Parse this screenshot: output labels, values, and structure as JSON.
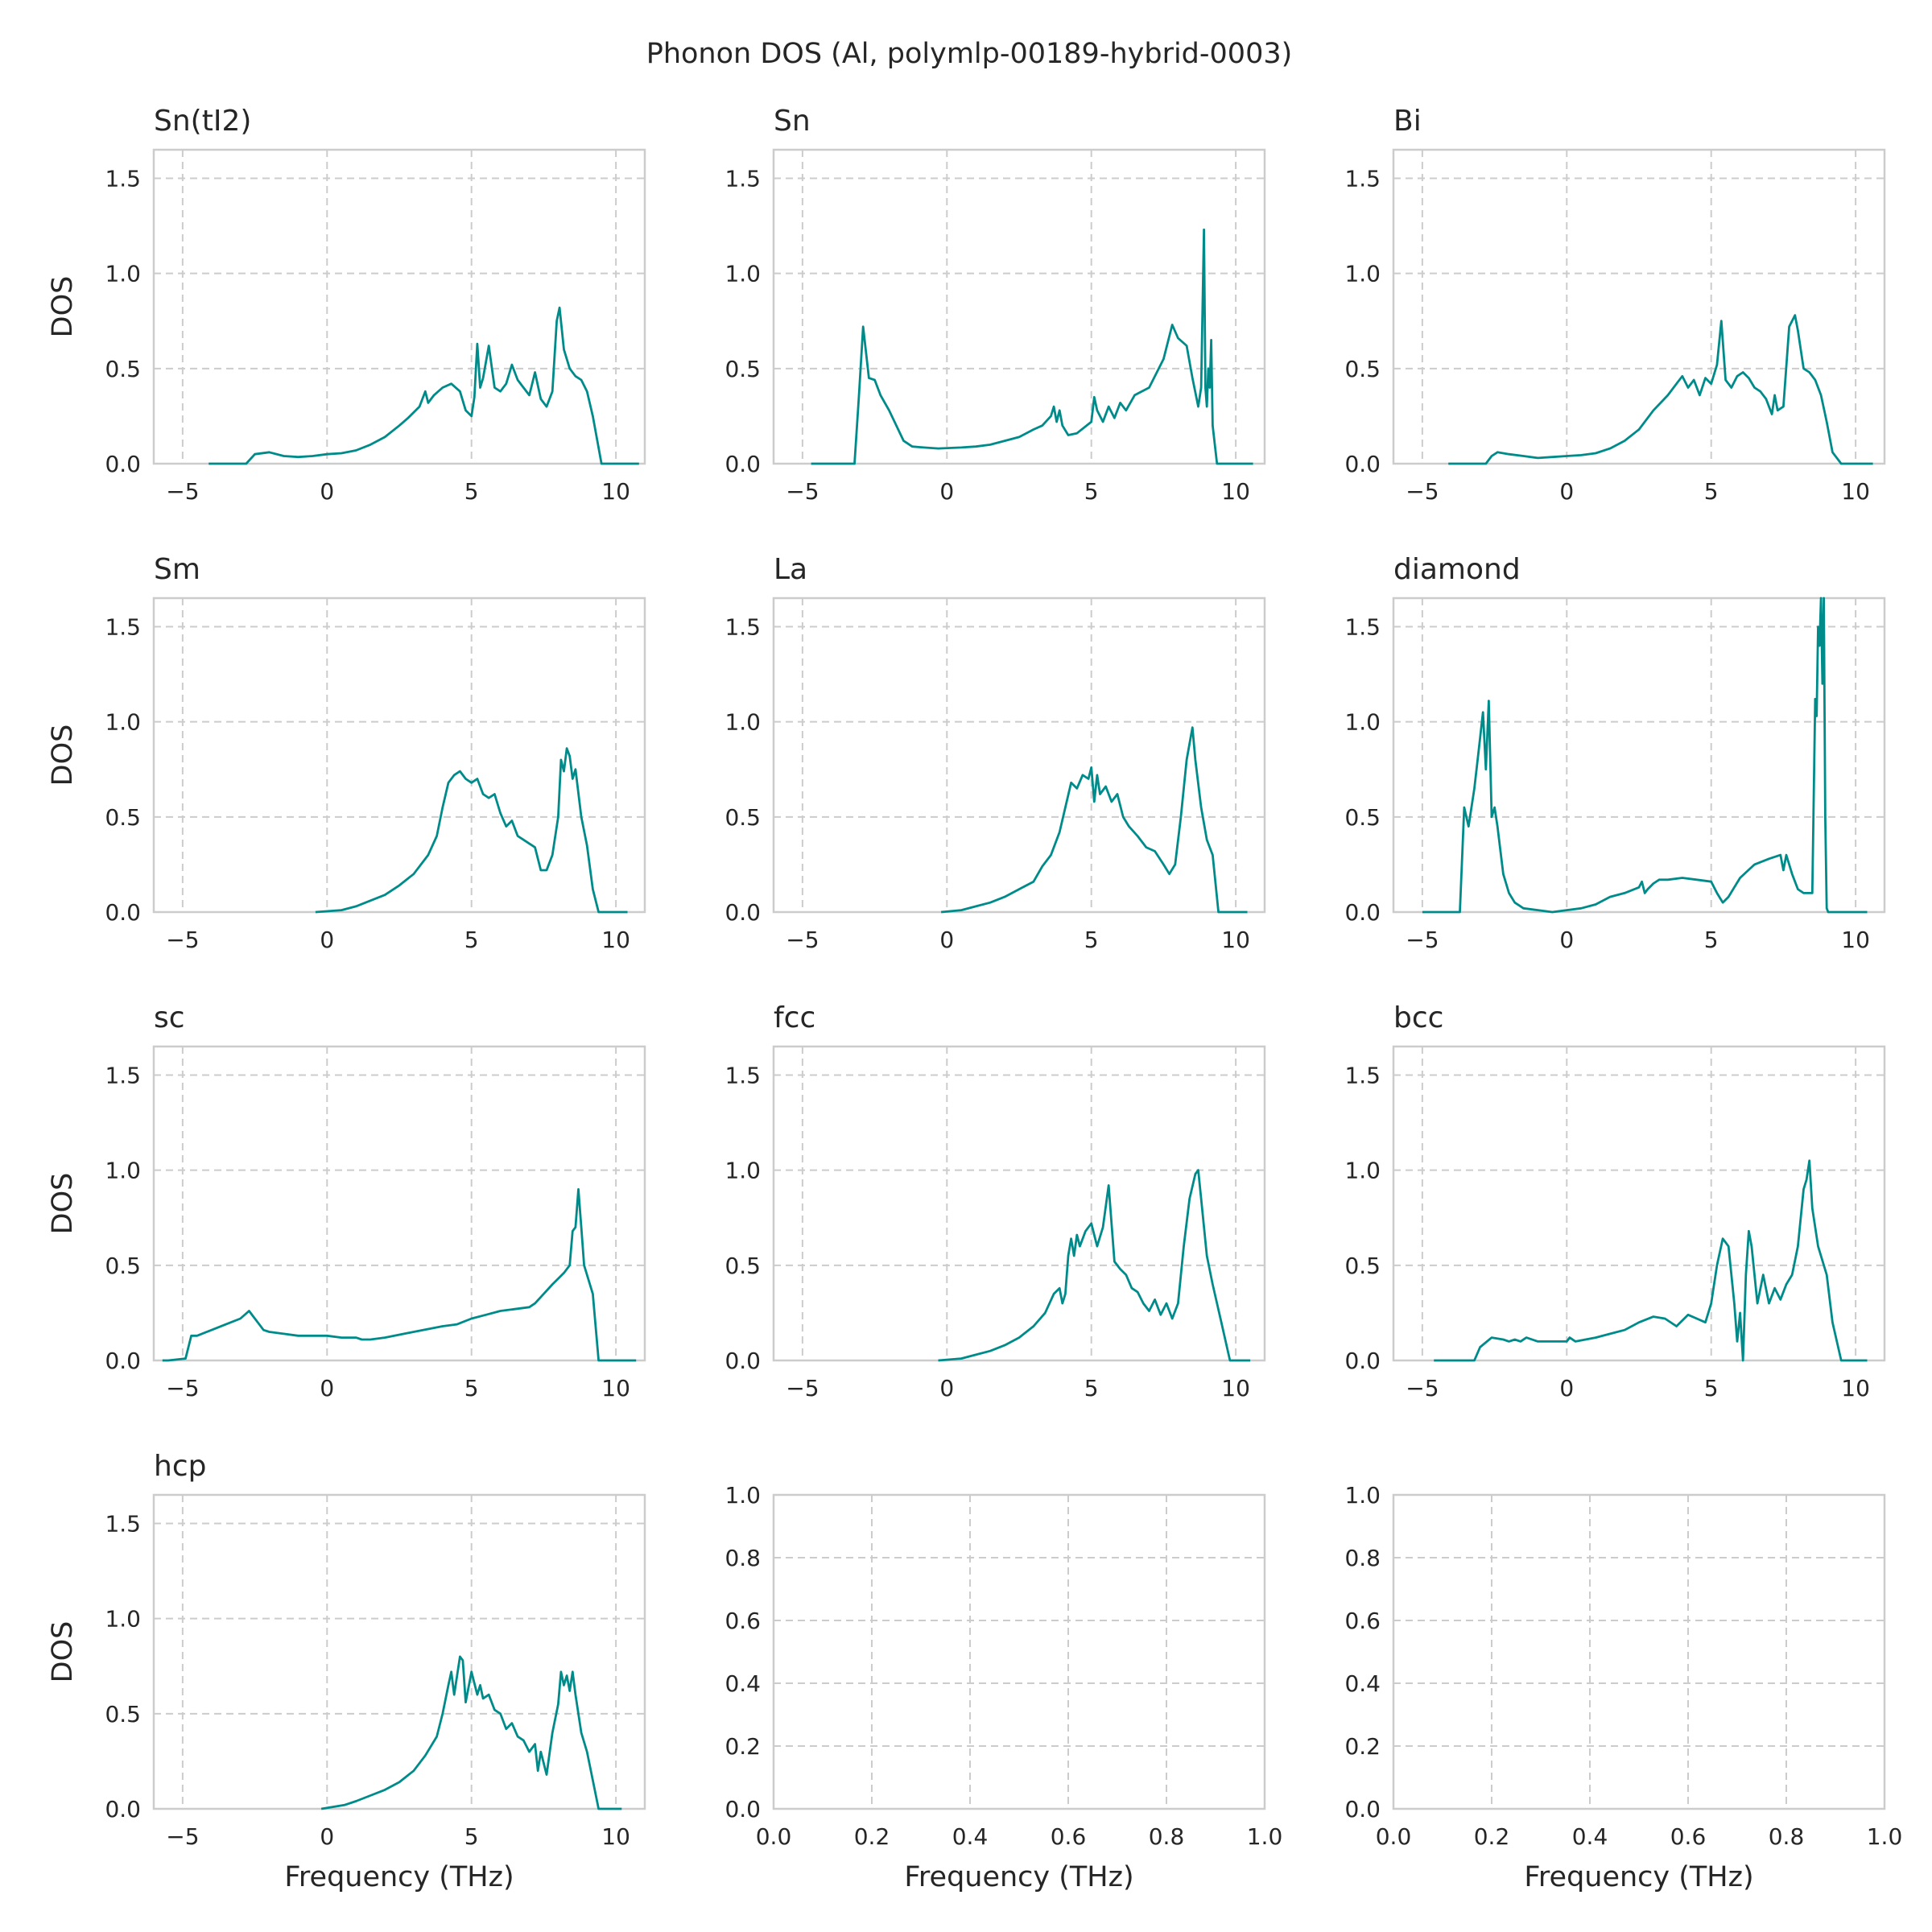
{
  "figure": {
    "title": "Phonon DOS (Al, polymlp-00189-hybrid-0003)",
    "line_color": "#008b8b",
    "grid": true
  },
  "chart_data": [
    {
      "type": "line",
      "title": "Sn(tI2)",
      "ylabel": "DOS",
      "xlabel": "",
      "xlim": [
        -6,
        11
      ],
      "ylim": [
        0,
        1.65
      ],
      "xticks": [
        -5,
        0,
        5,
        10
      ],
      "yticks": [
        0.0,
        0.5,
        1.0,
        1.5
      ],
      "x": [
        -4.1,
        -2.8,
        -2.5,
        -2,
        -1.5,
        -1,
        -0.5,
        0,
        0.5,
        1,
        1.5,
        2,
        2.5,
        2.8,
        3.2,
        3.4,
        3.5,
        3.7,
        4,
        4.3,
        4.6,
        4.8,
        5,
        5.1,
        5.2,
        5.3,
        5.4,
        5.6,
        5.8,
        6,
        6.2,
        6.4,
        6.6,
        6.8,
        7,
        7.1,
        7.2,
        7.4,
        7.6,
        7.8,
        7.95,
        8.05,
        8.2,
        8.4,
        8.6,
        8.8,
        9,
        9.2,
        9.5,
        10.8
      ],
      "y": [
        0,
        0,
        0.05,
        0.06,
        0.04,
        0.035,
        0.04,
        0.05,
        0.055,
        0.07,
        0.1,
        0.14,
        0.2,
        0.24,
        0.3,
        0.38,
        0.32,
        0.36,
        0.4,
        0.42,
        0.38,
        0.28,
        0.25,
        0.35,
        0.63,
        0.4,
        0.45,
        0.62,
        0.4,
        0.38,
        0.42,
        0.52,
        0.44,
        0.4,
        0.36,
        0.42,
        0.48,
        0.34,
        0.3,
        0.38,
        0.75,
        0.82,
        0.6,
        0.5,
        0.46,
        0.44,
        0.38,
        0.25,
        0,
        0
      ]
    },
    {
      "type": "line",
      "title": "Sn",
      "ylabel": "",
      "xlabel": "",
      "xlim": [
        -6,
        11
      ],
      "ylim": [
        0,
        1.65
      ],
      "xticks": [
        -5,
        0,
        5,
        10
      ],
      "yticks": [
        0.0,
        0.5,
        1.0,
        1.5
      ],
      "x": [
        -4.7,
        -3.2,
        -3.05,
        -2.9,
        -2.7,
        -2.5,
        -2.3,
        -2,
        -1.5,
        -1.2,
        -0.8,
        -0.3,
        0.5,
        1,
        1.5,
        2,
        2.5,
        3,
        3.3,
        3.6,
        3.7,
        3.8,
        3.9,
        4,
        4.2,
        4.5,
        5,
        5.1,
        5.2,
        5.4,
        5.6,
        5.8,
        6,
        6.2,
        6.5,
        7,
        7.5,
        7.8,
        8,
        8.3,
        8.5,
        8.7,
        8.8,
        8.9,
        8.95,
        9,
        9.05,
        9.1,
        9.15,
        9.2,
        9.35,
        10.6
      ],
      "y": [
        0,
        0,
        0.35,
        0.72,
        0.45,
        0.44,
        0.36,
        0.28,
        0.12,
        0.09,
        0.085,
        0.08,
        0.085,
        0.09,
        0.1,
        0.12,
        0.14,
        0.18,
        0.2,
        0.25,
        0.3,
        0.22,
        0.28,
        0.2,
        0.15,
        0.16,
        0.22,
        0.35,
        0.28,
        0.22,
        0.3,
        0.24,
        0.32,
        0.28,
        0.36,
        0.4,
        0.55,
        0.73,
        0.66,
        0.62,
        0.45,
        0.3,
        0.4,
        1.23,
        0.4,
        0.3,
        0.5,
        0.4,
        0.65,
        0.2,
        0,
        0
      ]
    },
    {
      "type": "line",
      "title": "Bi",
      "ylabel": "",
      "xlabel": "",
      "xlim": [
        -6,
        11
      ],
      "ylim": [
        0,
        1.65
      ],
      "xticks": [
        -5,
        0,
        5,
        10
      ],
      "yticks": [
        0.0,
        0.5,
        1.0,
        1.5
      ],
      "x": [
        -4.1,
        -2.8,
        -2.6,
        -2.4,
        -2,
        -1.5,
        -1,
        -0.5,
        0,
        0.5,
        1,
        1.5,
        2,
        2.5,
        3,
        3.5,
        3.8,
        4,
        4.2,
        4.4,
        4.6,
        4.8,
        5,
        5.2,
        5.35,
        5.5,
        5.7,
        5.9,
        6.1,
        6.3,
        6.5,
        6.7,
        6.9,
        7.1,
        7.2,
        7.3,
        7.5,
        7.7,
        7.9,
        8,
        8.2,
        8.4,
        8.6,
        8.8,
        9,
        9.2,
        9.5,
        10.6
      ],
      "y": [
        0,
        0,
        0.04,
        0.06,
        0.05,
        0.04,
        0.03,
        0.035,
        0.04,
        0.045,
        0.055,
        0.08,
        0.12,
        0.18,
        0.28,
        0.36,
        0.42,
        0.46,
        0.4,
        0.44,
        0.36,
        0.45,
        0.42,
        0.52,
        0.75,
        0.44,
        0.4,
        0.46,
        0.48,
        0.45,
        0.4,
        0.38,
        0.34,
        0.26,
        0.36,
        0.28,
        0.3,
        0.72,
        0.78,
        0.7,
        0.5,
        0.48,
        0.44,
        0.36,
        0.22,
        0.06,
        0,
        0
      ]
    },
    {
      "type": "line",
      "title": "Sm",
      "ylabel": "DOS",
      "xlabel": "",
      "xlim": [
        -6,
        11
      ],
      "ylim": [
        0,
        1.65
      ],
      "xticks": [
        -5,
        0,
        5,
        10
      ],
      "yticks": [
        0.0,
        0.5,
        1.0,
        1.5
      ],
      "x": [
        -0.4,
        0.5,
        1,
        1.5,
        2,
        2.5,
        3,
        3.5,
        3.8,
        4,
        4.2,
        4.4,
        4.6,
        4.8,
        5,
        5.2,
        5.4,
        5.6,
        5.8,
        6,
        6.2,
        6.4,
        6.6,
        6.8,
        7,
        7.2,
        7.4,
        7.6,
        7.8,
        8,
        8.1,
        8.2,
        8.3,
        8.4,
        8.5,
        8.6,
        8.8,
        9,
        9.2,
        9.4,
        10.4
      ],
      "y": [
        0,
        0.01,
        0.03,
        0.06,
        0.09,
        0.14,
        0.2,
        0.3,
        0.4,
        0.55,
        0.68,
        0.72,
        0.74,
        0.7,
        0.68,
        0.7,
        0.62,
        0.6,
        0.62,
        0.52,
        0.45,
        0.48,
        0.4,
        0.38,
        0.36,
        0.34,
        0.22,
        0.22,
        0.3,
        0.5,
        0.8,
        0.74,
        0.86,
        0.82,
        0.7,
        0.75,
        0.5,
        0.35,
        0.12,
        0,
        0
      ]
    },
    {
      "type": "line",
      "title": "La",
      "ylabel": "",
      "xlabel": "",
      "xlim": [
        -6,
        11
      ],
      "ylim": [
        0,
        1.65
      ],
      "xticks": [
        -5,
        0,
        5,
        10
      ],
      "yticks": [
        0.0,
        0.5,
        1.0,
        1.5
      ],
      "x": [
        -0.2,
        0.5,
        1,
        1.5,
        2,
        2.5,
        3,
        3.3,
        3.6,
        3.9,
        4.1,
        4.3,
        4.5,
        4.7,
        4.9,
        5,
        5.1,
        5.2,
        5.3,
        5.5,
        5.7,
        5.9,
        6.1,
        6.3,
        6.6,
        6.9,
        7.2,
        7.5,
        7.7,
        7.9,
        8.1,
        8.3,
        8.5,
        8.6,
        8.8,
        9,
        9.2,
        9.4,
        10.4
      ],
      "y": [
        0,
        0.01,
        0.03,
        0.05,
        0.08,
        0.12,
        0.16,
        0.24,
        0.3,
        0.42,
        0.55,
        0.68,
        0.65,
        0.72,
        0.7,
        0.76,
        0.58,
        0.72,
        0.62,
        0.66,
        0.58,
        0.62,
        0.5,
        0.45,
        0.4,
        0.34,
        0.32,
        0.25,
        0.2,
        0.25,
        0.5,
        0.8,
        0.97,
        0.8,
        0.55,
        0.38,
        0.3,
        0,
        0
      ]
    },
    {
      "type": "line",
      "title": "diamond",
      "ylabel": "",
      "xlabel": "",
      "xlim": [
        -6,
        11
      ],
      "ylim": [
        0,
        1.65
      ],
      "xticks": [
        -5,
        0,
        5,
        10
      ],
      "yticks": [
        0.0,
        0.5,
        1.0,
        1.5
      ],
      "x": [
        -5,
        -3.7,
        -3.55,
        -3.4,
        -3.2,
        -3.05,
        -2.9,
        -2.8,
        -2.7,
        -2.6,
        -2.5,
        -2.4,
        -2.2,
        -2,
        -1.8,
        -1.5,
        -1,
        -0.5,
        0,
        0.5,
        1,
        1.5,
        2,
        2.5,
        2.6,
        2.7,
        2.8,
        3,
        3.2,
        3.5,
        4,
        4.5,
        5,
        5.2,
        5.4,
        5.6,
        6,
        6.5,
        7,
        7.4,
        7.5,
        7.6,
        7.7,
        7.8,
        8,
        8.2,
        8.5,
        8.6,
        8.65,
        8.7,
        8.75,
        8.8,
        8.85,
        8.9,
        8.95,
        9,
        9.05,
        10.4
      ],
      "y": [
        0,
        0,
        0.55,
        0.45,
        0.65,
        0.85,
        1.05,
        0.75,
        1.11,
        0.5,
        0.55,
        0.45,
        0.2,
        0.1,
        0.05,
        0.02,
        0.01,
        0,
        0.01,
        0.02,
        0.04,
        0.08,
        0.1,
        0.13,
        0.16,
        0.1,
        0.12,
        0.15,
        0.17,
        0.17,
        0.18,
        0.17,
        0.16,
        0.1,
        0.05,
        0.08,
        0.18,
        0.25,
        0.28,
        0.3,
        0.22,
        0.3,
        0.25,
        0.2,
        0.12,
        0.1,
        0.1,
        1.12,
        1.03,
        1.5,
        1.4,
        1.65,
        1.2,
        1.65,
        0.5,
        0.02,
        0,
        0
      ]
    },
    {
      "type": "line",
      "title": "sc",
      "ylabel": "DOS",
      "xlabel": "",
      "xlim": [
        -6,
        11
      ],
      "ylim": [
        0,
        1.65
      ],
      "xticks": [
        -5,
        0,
        5,
        10
      ],
      "yticks": [
        0.0,
        0.5,
        1.0,
        1.5
      ],
      "x": [
        -5.7,
        -5.5,
        -4.9,
        -4.7,
        -4.5,
        -4,
        -3.5,
        -3,
        -2.7,
        -2.5,
        -2.4,
        -2.2,
        -2,
        -1.5,
        -1,
        0,
        0.5,
        1,
        1.2,
        1.5,
        2,
        3,
        4,
        4.5,
        5,
        5.5,
        6,
        6.5,
        7,
        7.2,
        7.5,
        7.8,
        8,
        8.2,
        8.4,
        8.5,
        8.6,
        8.7,
        8.8,
        8.9,
        9,
        9.2,
        9.4,
        10.7
      ],
      "y": [
        0,
        0,
        0.01,
        0.13,
        0.13,
        0.16,
        0.19,
        0.22,
        0.26,
        0.22,
        0.2,
        0.16,
        0.15,
        0.14,
        0.13,
        0.13,
        0.12,
        0.12,
        0.11,
        0.11,
        0.12,
        0.15,
        0.18,
        0.19,
        0.22,
        0.24,
        0.26,
        0.27,
        0.28,
        0.3,
        0.35,
        0.4,
        0.43,
        0.46,
        0.5,
        0.68,
        0.7,
        0.9,
        0.7,
        0.5,
        0.45,
        0.35,
        0,
        0
      ]
    },
    {
      "type": "line",
      "title": "fcc",
      "ylabel": "",
      "xlabel": "",
      "xlim": [
        -6,
        11
      ],
      "ylim": [
        0,
        1.65
      ],
      "xticks": [
        -5,
        0,
        5,
        10
      ],
      "yticks": [
        0.0,
        0.5,
        1.0,
        1.5
      ],
      "x": [
        -0.3,
        0.5,
        1,
        1.5,
        2,
        2.5,
        3,
        3.4,
        3.7,
        3.9,
        4,
        4.1,
        4.2,
        4.3,
        4.4,
        4.5,
        4.6,
        4.8,
        5,
        5.2,
        5.4,
        5.6,
        5.8,
        6,
        6.2,
        6.4,
        6.6,
        6.8,
        7,
        7.2,
        7.4,
        7.6,
        7.8,
        8,
        8.2,
        8.4,
        8.6,
        8.7,
        8.8,
        9,
        9.2,
        9.5,
        9.8,
        10.5
      ],
      "y": [
        0,
        0.01,
        0.03,
        0.05,
        0.08,
        0.12,
        0.18,
        0.25,
        0.35,
        0.38,
        0.3,
        0.35,
        0.55,
        0.64,
        0.55,
        0.66,
        0.6,
        0.68,
        0.72,
        0.6,
        0.7,
        0.92,
        0.52,
        0.48,
        0.45,
        0.38,
        0.36,
        0.3,
        0.26,
        0.32,
        0.24,
        0.3,
        0.22,
        0.3,
        0.6,
        0.85,
        0.98,
        1.0,
        0.85,
        0.55,
        0.4,
        0.2,
        0,
        0
      ]
    },
    {
      "type": "line",
      "title": "bcc",
      "ylabel": "",
      "xlabel": "",
      "xlim": [
        -6,
        11
      ],
      "ylim": [
        0,
        1.65
      ],
      "xticks": [
        -5,
        0,
        5,
        10
      ],
      "yticks": [
        0.0,
        0.5,
        1.0,
        1.5
      ],
      "x": [
        -4.6,
        -3.2,
        -3,
        -2.6,
        -2.2,
        -2,
        -1.8,
        -1.6,
        -1.4,
        -1,
        0,
        0.1,
        0.3,
        1,
        1.5,
        2,
        2.5,
        3,
        3.4,
        3.8,
        4.2,
        4.5,
        4.8,
        5,
        5.2,
        5.4,
        5.6,
        5.7,
        5.8,
        5.9,
        6,
        6.1,
        6.2,
        6.3,
        6.4,
        6.6,
        6.8,
        7,
        7.2,
        7.4,
        7.6,
        7.8,
        8,
        8.2,
        8.3,
        8.4,
        8.5,
        8.7,
        9,
        9.2,
        9.5,
        10.4
      ],
      "y": [
        0,
        0,
        0.07,
        0.12,
        0.11,
        0.1,
        0.11,
        0.1,
        0.12,
        0.1,
        0.1,
        0.12,
        0.1,
        0.12,
        0.14,
        0.16,
        0.2,
        0.23,
        0.22,
        0.18,
        0.24,
        0.22,
        0.2,
        0.3,
        0.5,
        0.64,
        0.6,
        0.45,
        0.3,
        0.1,
        0.25,
        0,
        0.45,
        0.68,
        0.6,
        0.3,
        0.45,
        0.3,
        0.38,
        0.32,
        0.4,
        0.45,
        0.6,
        0.9,
        0.95,
        1.05,
        0.8,
        0.6,
        0.45,
        0.2,
        0,
        0
      ]
    },
    {
      "type": "line",
      "title": "hcp",
      "ylabel": "DOS",
      "xlabel": "Frequency (THz)",
      "xlim": [
        -6,
        11
      ],
      "ylim": [
        0,
        1.65
      ],
      "xticks": [
        -5,
        0,
        5,
        10
      ],
      "yticks": [
        0.0,
        0.5,
        1.0,
        1.5
      ],
      "x": [
        -0.2,
        0.6,
        1,
        1.5,
        2,
        2.5,
        3,
        3.4,
        3.8,
        4,
        4.2,
        4.3,
        4.4,
        4.5,
        4.6,
        4.7,
        4.8,
        5,
        5.2,
        5.3,
        5.4,
        5.6,
        5.8,
        6,
        6.2,
        6.4,
        6.6,
        6.8,
        7,
        7.2,
        7.3,
        7.4,
        7.6,
        7.8,
        8,
        8.1,
        8.2,
        8.3,
        8.4,
        8.5,
        8.6,
        8.7,
        8.8,
        9,
        9.2,
        9.4,
        10.2
      ],
      "y": [
        0,
        0.02,
        0.04,
        0.07,
        0.1,
        0.14,
        0.2,
        0.28,
        0.38,
        0.5,
        0.65,
        0.72,
        0.6,
        0.7,
        0.8,
        0.78,
        0.56,
        0.72,
        0.6,
        0.65,
        0.58,
        0.6,
        0.52,
        0.5,
        0.42,
        0.45,
        0.38,
        0.36,
        0.3,
        0.34,
        0.2,
        0.3,
        0.18,
        0.4,
        0.55,
        0.72,
        0.65,
        0.7,
        0.62,
        0.72,
        0.6,
        0.5,
        0.4,
        0.3,
        0.15,
        0,
        0
      ]
    },
    {
      "type": "line",
      "title": "",
      "ylabel": "",
      "xlabel": "Frequency (THz)",
      "xlim": [
        0,
        1
      ],
      "ylim": [
        0,
        1
      ],
      "xticks": [
        0.0,
        0.2,
        0.4,
        0.6,
        0.8,
        1.0
      ],
      "yticks": [
        0.0,
        0.2,
        0.4,
        0.6,
        0.8,
        1.0
      ],
      "x": [],
      "y": []
    },
    {
      "type": "line",
      "title": "",
      "ylabel": "",
      "xlabel": "Frequency (THz)",
      "xlim": [
        0,
        1
      ],
      "ylim": [
        0,
        1
      ],
      "xticks": [
        0.0,
        0.2,
        0.4,
        0.6,
        0.8,
        1.0
      ],
      "yticks": [
        0.0,
        0.2,
        0.4,
        0.6,
        0.8,
        1.0
      ],
      "x": [],
      "y": []
    }
  ]
}
